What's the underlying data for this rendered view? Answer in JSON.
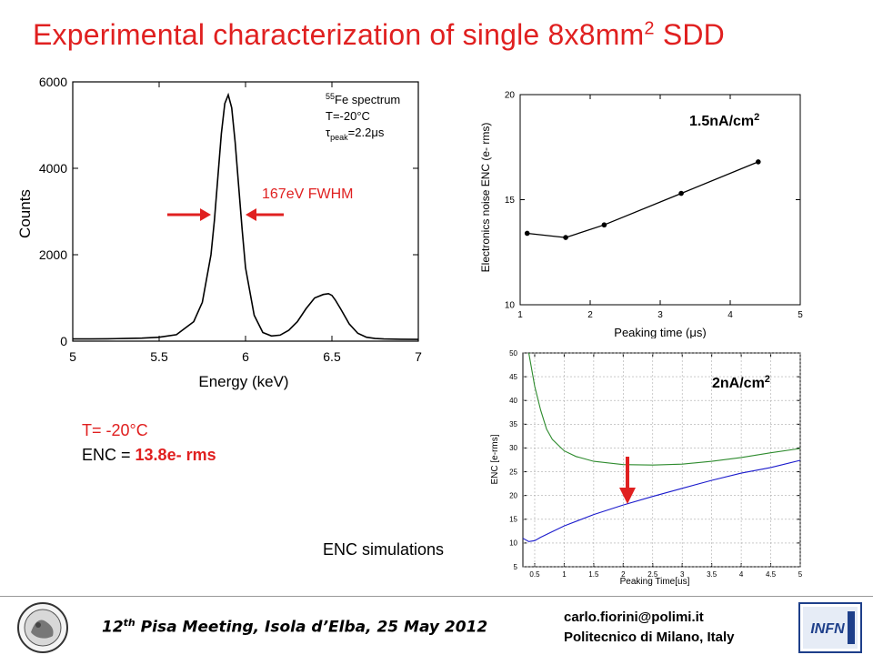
{
  "title": {
    "main": "Experimental characterization of single 8x8mm",
    "sup": "2",
    "tail": " SDD"
  },
  "chart_data": [
    {
      "type": "line",
      "xlabel": "Energy (keV)",
      "ylabel": "Counts",
      "xlim": [
        5,
        7
      ],
      "ylim": [
        0,
        6000
      ],
      "xticks": [
        "5",
        "5.5",
        "6",
        "6.5",
        "7"
      ],
      "yticks": [
        "0",
        "2000",
        "4000",
        "6000"
      ],
      "annotation": {
        "pre": "55",
        "line1": "Fe spectrum",
        "line2": "T=-20°C",
        "tau": "τ",
        "sub": "peak",
        "line3val": "=2.2μs"
      },
      "fwhm_label": "167eV FWHM",
      "x": [
        5.0,
        5.1,
        5.2,
        5.3,
        5.4,
        5.5,
        5.6,
        5.7,
        5.75,
        5.8,
        5.82,
        5.84,
        5.86,
        5.88,
        5.9,
        5.92,
        5.94,
        5.96,
        5.98,
        6.0,
        6.05,
        6.1,
        6.15,
        6.2,
        6.25,
        6.3,
        6.35,
        6.4,
        6.45,
        6.48,
        6.5,
        6.52,
        6.55,
        6.6,
        6.65,
        6.7,
        6.75,
        6.8,
        6.9,
        7.0
      ],
      "y": [
        50,
        50,
        55,
        60,
        70,
        90,
        150,
        450,
        900,
        2000,
        2800,
        3800,
        4800,
        5500,
        5700,
        5400,
        4600,
        3600,
        2600,
        1700,
        600,
        200,
        120,
        140,
        250,
        450,
        750,
        1000,
        1080,
        1100,
        1060,
        950,
        750,
        400,
        180,
        90,
        60,
        50,
        45,
        40
      ]
    },
    {
      "type": "line",
      "xlabel": "Peaking time (μs)",
      "ylabel": "Electronics noise ENC (e- rms)",
      "xlim": [
        1,
        5
      ],
      "ylim": [
        10,
        20
      ],
      "xticks": [
        "1",
        "2",
        "3",
        "4",
        "5"
      ],
      "yticks": [
        "10",
        "15",
        "20"
      ],
      "label": "1.5nA/cm",
      "label_sup": "2",
      "x": [
        1.1,
        1.65,
        2.2,
        3.3,
        4.4
      ],
      "y": [
        13.4,
        13.2,
        13.8,
        15.3,
        16.8
      ]
    },
    {
      "type": "line",
      "xlabel": "Peaking Time[us]",
      "ylabel": "ENC [e-rms]",
      "xlim": [
        0.3,
        5
      ],
      "ylim": [
        5,
        50
      ],
      "xticks": [
        "0.5",
        "1",
        "1.5",
        "2",
        "2.5",
        "3",
        "3.5",
        "4",
        "4.5",
        "5"
      ],
      "yticks": [
        "5",
        "10",
        "15",
        "20",
        "25",
        "30",
        "35",
        "40",
        "45",
        "50"
      ],
      "label": "2nA/cm",
      "label_sup": "2",
      "series": [
        {
          "color": "#2e8b2e",
          "x": [
            0.4,
            0.5,
            0.6,
            0.7,
            0.8,
            1.0,
            1.2,
            1.5,
            2.0,
            2.5,
            3.0,
            3.5,
            4.0,
            4.5,
            5.0
          ],
          "y": [
            50,
            43,
            38,
            34,
            31.8,
            29.4,
            28.2,
            27.2,
            26.5,
            26.4,
            26.6,
            27.2,
            28.0,
            29.0,
            29.9
          ]
        },
        {
          "color": "#1a1acc",
          "x": [
            0.3,
            0.4,
            0.5,
            0.6,
            0.8,
            1.0,
            1.5,
            2.0,
            2.5,
            3.0,
            3.5,
            4.0,
            4.5,
            5.0
          ],
          "y": [
            11.0,
            10.3,
            10.5,
            11.2,
            12.4,
            13.6,
            16.0,
            18.0,
            19.8,
            21.5,
            23.2,
            24.7,
            25.9,
            27.4
          ]
        }
      ]
    }
  ],
  "notes": {
    "temp": "T= -20°C",
    "enc_label": "ENC = ",
    "enc_value": "13.8e- rms"
  },
  "enc_sim_label": "ENC simulations",
  "footer": {
    "meeting_pre": "12",
    "meeting_sup": "th",
    "meeting_post": " Pisa Meeting, Isola d’Elba, 25 May 2012",
    "email": "carlo.fiorini@polimi.it",
    "affiliation": "Politecnico di Milano, Italy",
    "infn": "INFN"
  },
  "colors": {
    "title": "#e02020",
    "arrow": "#e02020",
    "green": "#2e8b2e",
    "blue": "#1a1acc"
  }
}
